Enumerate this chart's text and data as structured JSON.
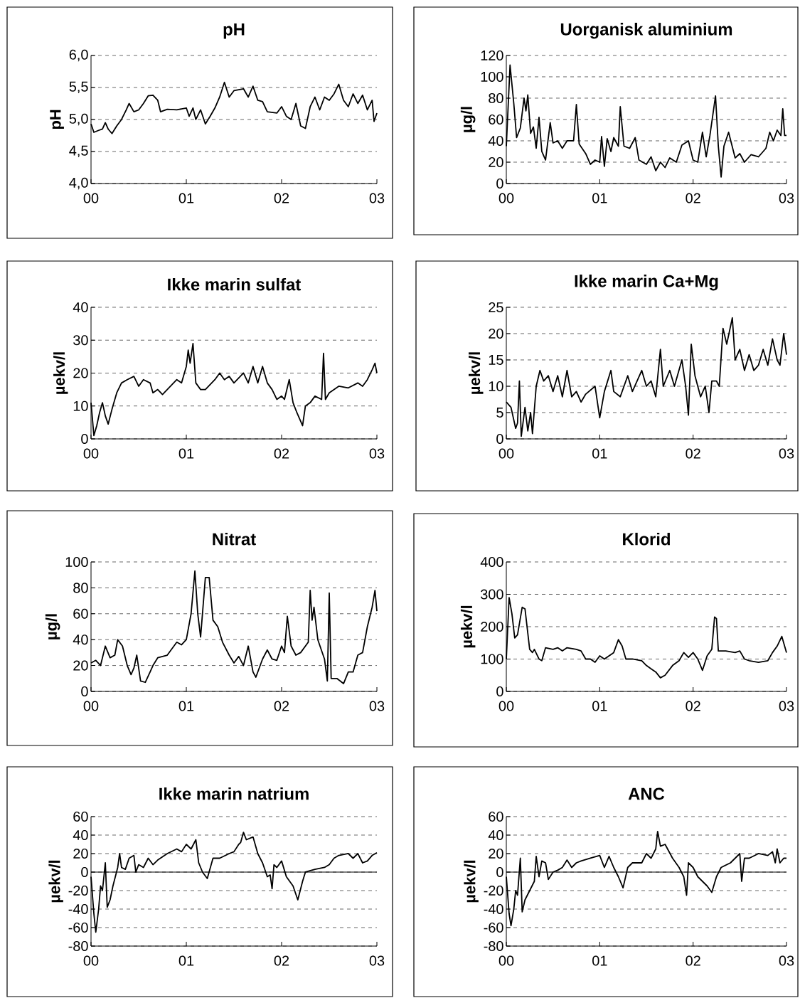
{
  "chart_data": [
    {
      "type": "line",
      "title": "pH",
      "ylabel": "pH",
      "color": "#000000",
      "line_style": "solid",
      "grid": "y",
      "xlim": [
        0,
        3
      ],
      "xticks": [
        {
          "value": 0,
          "label": "00"
        },
        {
          "value": 1,
          "label": "01"
        },
        {
          "value": 2,
          "label": "02"
        },
        {
          "value": 3,
          "label": "03"
        }
      ],
      "ylim": [
        4,
        6
      ],
      "yticks": [
        {
          "value": 4,
          "label": "4,0"
        },
        {
          "value": 4.5,
          "label": "4,5"
        },
        {
          "value": 5,
          "label": "5,0"
        },
        {
          "value": 5.5,
          "label": "5,5"
        },
        {
          "value": 6,
          "label": "6,0"
        }
      ],
      "x": [
        0,
        0.03,
        0.08,
        0.12,
        0.15,
        0.18,
        0.22,
        0.27,
        0.32,
        0.37,
        0.4,
        0.45,
        0.5,
        0.55,
        0.6,
        0.65,
        0.7,
        0.73,
        0.8,
        0.9,
        1.0,
        1.03,
        1.07,
        1.1,
        1.15,
        1.2,
        1.25,
        1.3,
        1.35,
        1.4,
        1.45,
        1.5,
        1.6,
        1.65,
        1.7,
        1.75,
        1.8,
        1.85,
        1.95,
        2.0,
        2.05,
        2.1,
        2.15,
        2.2,
        2.25,
        2.3,
        2.35,
        2.4,
        2.45,
        2.5,
        2.55,
        2.6,
        2.65,
        2.7,
        2.75,
        2.8,
        2.85,
        2.9,
        2.95,
        2.97,
        3.0
      ],
      "values": [
        4.93,
        4.8,
        4.83,
        4.85,
        4.95,
        4.85,
        4.78,
        4.9,
        5.0,
        5.15,
        5.25,
        5.12,
        5.15,
        5.25,
        5.37,
        5.38,
        5.3,
        5.12,
        5.16,
        5.15,
        5.18,
        5.05,
        5.18,
        5.0,
        5.15,
        4.93,
        5.05,
        5.18,
        5.35,
        5.58,
        5.35,
        5.45,
        5.48,
        5.35,
        5.52,
        5.3,
        5.28,
        5.12,
        5.1,
        5.2,
        5.05,
        5.0,
        5.25,
        4.9,
        4.86,
        5.2,
        5.35,
        5.15,
        5.35,
        5.3,
        5.4,
        5.55,
        5.3,
        5.2,
        5.4,
        5.25,
        5.38,
        5.15,
        5.3,
        4.97,
        5.1
      ]
    },
    {
      "type": "line",
      "title": "Uorganisk aluminium",
      "ylabel": "µg/l",
      "color": "#000000",
      "line_style": "solid",
      "grid": "y",
      "xlim": [
        0,
        3
      ],
      "xticks": [
        {
          "value": 0,
          "label": "00"
        },
        {
          "value": 1,
          "label": "01"
        },
        {
          "value": 2,
          "label": "02"
        },
        {
          "value": 3,
          "label": "03"
        }
      ],
      "ylim": [
        0,
        120
      ],
      "yticks": [
        0,
        20,
        40,
        60,
        80,
        100,
        120
      ],
      "x": [
        0,
        0.04,
        0.08,
        0.11,
        0.15,
        0.19,
        0.21,
        0.23,
        0.26,
        0.29,
        0.32,
        0.35,
        0.38,
        0.42,
        0.47,
        0.5,
        0.55,
        0.6,
        0.65,
        0.72,
        0.75,
        0.78,
        0.85,
        0.9,
        0.95,
        1.0,
        1.02,
        1.05,
        1.08,
        1.12,
        1.15,
        1.2,
        1.22,
        1.26,
        1.32,
        1.38,
        1.42,
        1.5,
        1.55,
        1.6,
        1.65,
        1.7,
        1.75,
        1.82,
        1.88,
        1.95,
        2.0,
        2.05,
        2.1,
        2.14,
        2.18,
        2.24,
        2.27,
        2.3,
        2.33,
        2.38,
        2.45,
        2.5,
        2.55,
        2.62,
        2.7,
        2.78,
        2.82,
        2.86,
        2.9,
        2.94,
        2.96,
        2.98,
        3.0
      ],
      "values": [
        35,
        111,
        75,
        43,
        52,
        80,
        68,
        83,
        47,
        53,
        33,
        62,
        30,
        22,
        57,
        38,
        40,
        33,
        40,
        40,
        74,
        37,
        28,
        18,
        22,
        20,
        44,
        16,
        42,
        30,
        43,
        35,
        72,
        35,
        33,
        43,
        22,
        18,
        25,
        12,
        20,
        15,
        24,
        20,
        36,
        40,
        22,
        20,
        48,
        25,
        45,
        82,
        35,
        6,
        35,
        48,
        24,
        28,
        20,
        27,
        25,
        33,
        48,
        40,
        50,
        45,
        70,
        45,
        45
      ]
    },
    {
      "type": "line",
      "title": "Ikke marin sulfat",
      "ylabel": "µekv/l",
      "color": "#000000",
      "line_style": "solid",
      "grid": "y",
      "xlim": [
        0,
        3
      ],
      "xticks": [
        {
          "value": 0,
          "label": "00"
        },
        {
          "value": 1,
          "label": "01"
        },
        {
          "value": 2,
          "label": "02"
        },
        {
          "value": 3,
          "label": "03"
        }
      ],
      "ylim": [
        0,
        40
      ],
      "yticks": [
        0,
        10,
        20,
        30,
        40
      ],
      "x": [
        0,
        0.03,
        0.06,
        0.09,
        0.12,
        0.15,
        0.18,
        0.22,
        0.27,
        0.32,
        0.38,
        0.45,
        0.5,
        0.55,
        0.62,
        0.65,
        0.7,
        0.75,
        0.8,
        0.9,
        0.95,
        1.0,
        1.02,
        1.04,
        1.07,
        1.1,
        1.15,
        1.2,
        1.3,
        1.35,
        1.4,
        1.45,
        1.5,
        1.6,
        1.65,
        1.7,
        1.75,
        1.8,
        1.85,
        1.9,
        1.95,
        2.0,
        2.03,
        2.08,
        2.12,
        2.16,
        2.22,
        2.25,
        2.3,
        2.35,
        2.42,
        2.44,
        2.46,
        2.5,
        2.6,
        2.7,
        2.8,
        2.85,
        2.9,
        2.95,
        2.98,
        3.0
      ],
      "values": [
        11,
        1,
        4,
        8,
        11,
        7,
        4.5,
        9,
        14,
        17,
        18,
        19,
        16,
        18,
        17,
        14,
        15,
        13.5,
        15,
        18,
        17,
        22,
        27,
        23,
        29,
        17,
        15,
        15,
        18,
        20,
        18,
        19,
        17,
        20,
        17,
        22,
        17,
        22,
        17,
        15,
        12,
        13,
        12,
        18,
        11,
        8,
        4,
        10,
        11,
        13,
        12,
        26,
        12,
        14,
        16,
        15.5,
        17,
        16,
        18,
        21,
        23,
        20
      ]
    },
    {
      "type": "line",
      "title": "Ikke marin Ca+Mg",
      "ylabel": "µekv/l",
      "color": "#000000",
      "line_style": "solid",
      "grid": "y",
      "xlim": [
        0,
        3
      ],
      "xticks": [
        {
          "value": 0,
          "label": "00"
        },
        {
          "value": 1,
          "label": "01"
        },
        {
          "value": 2,
          "label": "02"
        },
        {
          "value": 3,
          "label": "03"
        }
      ],
      "ylim": [
        0,
        25
      ],
      "yticks": [
        0,
        5,
        10,
        15,
        20,
        25
      ],
      "x": [
        0,
        0.05,
        0.1,
        0.12,
        0.14,
        0.16,
        0.2,
        0.23,
        0.26,
        0.28,
        0.32,
        0.36,
        0.4,
        0.45,
        0.5,
        0.55,
        0.6,
        0.65,
        0.7,
        0.75,
        0.8,
        0.85,
        0.95,
        1.0,
        1.05,
        1.12,
        1.15,
        1.22,
        1.3,
        1.35,
        1.45,
        1.5,
        1.55,
        1.6,
        1.65,
        1.68,
        1.75,
        1.8,
        1.88,
        1.92,
        1.95,
        1.98,
        2.02,
        2.08,
        2.13,
        2.17,
        2.2,
        2.25,
        2.28,
        2.32,
        2.36,
        2.42,
        2.45,
        2.5,
        2.55,
        2.6,
        2.65,
        2.7,
        2.75,
        2.8,
        2.85,
        2.9,
        2.93,
        2.97,
        3.0
      ],
      "values": [
        7,
        6,
        2,
        3,
        11,
        0.5,
        6,
        1.5,
        5,
        1,
        10,
        13,
        11,
        12,
        9,
        12,
        8,
        13,
        8,
        9,
        7,
        8.5,
        10,
        4,
        9,
        13,
        9,
        8,
        12,
        9,
        13,
        10,
        11,
        8,
        17,
        10,
        13,
        10,
        15,
        10,
        4.5,
        18,
        12,
        8,
        10,
        5,
        11,
        11,
        10,
        21,
        18,
        23,
        15,
        17,
        13,
        16,
        13,
        14,
        17,
        14,
        19,
        15,
        14,
        20,
        16
      ]
    },
    {
      "type": "line",
      "title": "Nitrat",
      "ylabel": "µg/l",
      "color": "#000000",
      "line_style": "solid",
      "grid": "y",
      "xlim": [
        0,
        3
      ],
      "xticks": [
        {
          "value": 0,
          "label": "00"
        },
        {
          "value": 1,
          "label": "01"
        },
        {
          "value": 2,
          "label": "02"
        },
        {
          "value": 3,
          "label": "03"
        }
      ],
      "ylim": [
        0,
        100
      ],
      "yticks": [
        0,
        20,
        40,
        60,
        80,
        100
      ],
      "x": [
        0,
        0.05,
        0.1,
        0.15,
        0.2,
        0.25,
        0.28,
        0.33,
        0.38,
        0.42,
        0.45,
        0.48,
        0.52,
        0.57,
        0.62,
        0.65,
        0.7,
        0.8,
        0.9,
        0.95,
        1.0,
        1.05,
        1.09,
        1.12,
        1.15,
        1.2,
        1.24,
        1.28,
        1.33,
        1.38,
        1.45,
        1.5,
        1.55,
        1.6,
        1.65,
        1.7,
        1.73,
        1.8,
        1.85,
        1.9,
        1.95,
        2.0,
        2.03,
        2.06,
        2.1,
        2.15,
        2.2,
        2.28,
        2.3,
        2.32,
        2.34,
        2.38,
        2.45,
        2.48,
        2.5,
        2.52,
        2.58,
        2.65,
        2.7,
        2.75,
        2.8,
        2.85,
        2.9,
        2.95,
        2.98,
        3.0
      ],
      "values": [
        22,
        24,
        20,
        35,
        26,
        28,
        40,
        35,
        20,
        13,
        18,
        28,
        8,
        7,
        15,
        20,
        26,
        28,
        38,
        36,
        40,
        60,
        93,
        60,
        42,
        88,
        88,
        55,
        50,
        38,
        28,
        22,
        27,
        20,
        35,
        15,
        11,
        25,
        32,
        25,
        24,
        35,
        30,
        58,
        35,
        28,
        30,
        38,
        78,
        55,
        65,
        40,
        25,
        8,
        76,
        10,
        10,
        6,
        15,
        15,
        28,
        30,
        50,
        65,
        78,
        62
      ]
    },
    {
      "type": "line",
      "title": "Klorid",
      "ylabel": "µekv/l",
      "color": "#000000",
      "line_style": "solid",
      "grid": "y",
      "xlim": [
        0,
        3
      ],
      "xticks": [
        {
          "value": 0,
          "label": "00"
        },
        {
          "value": 1,
          "label": "01"
        },
        {
          "value": 2,
          "label": "02"
        },
        {
          "value": 3,
          "label": "03"
        }
      ],
      "ylim": [
        0,
        400
      ],
      "yticks": [
        0,
        100,
        200,
        300,
        400
      ],
      "x": [
        0,
        0.03,
        0.06,
        0.09,
        0.12,
        0.17,
        0.2,
        0.25,
        0.28,
        0.3,
        0.35,
        0.38,
        0.42,
        0.5,
        0.55,
        0.6,
        0.65,
        0.75,
        0.8,
        0.85,
        0.9,
        0.95,
        1.0,
        1.05,
        1.1,
        1.15,
        1.2,
        1.24,
        1.28,
        1.35,
        1.45,
        1.5,
        1.55,
        1.6,
        1.65,
        1.7,
        1.78,
        1.85,
        1.9,
        1.95,
        2.0,
        2.05,
        2.1,
        2.15,
        2.2,
        2.23,
        2.25,
        2.27,
        2.35,
        2.45,
        2.5,
        2.55,
        2.6,
        2.7,
        2.8,
        2.85,
        2.9,
        2.95,
        3.0
      ],
      "values": [
        100,
        290,
        240,
        165,
        175,
        260,
        255,
        130,
        120,
        130,
        100,
        95,
        135,
        130,
        135,
        125,
        135,
        130,
        125,
        100,
        100,
        90,
        110,
        100,
        110,
        120,
        160,
        140,
        100,
        100,
        95,
        80,
        70,
        60,
        42,
        50,
        80,
        95,
        120,
        105,
        120,
        100,
        65,
        110,
        130,
        230,
        225,
        125,
        125,
        120,
        125,
        100,
        95,
        90,
        95,
        120,
        140,
        170,
        120
      ]
    },
    {
      "type": "line",
      "title": "Ikke marin natrium",
      "ylabel": "µekv/l",
      "color": "#000000",
      "line_style": "solid",
      "grid": "y",
      "xlim": [
        0,
        3
      ],
      "xticks": [
        {
          "value": 0,
          "label": "00"
        },
        {
          "value": 1,
          "label": "01"
        },
        {
          "value": 2,
          "label": "02"
        },
        {
          "value": 3,
          "label": "03"
        }
      ],
      "ylim": [
        -80,
        60
      ],
      "yticks": [
        -80,
        -60,
        -40,
        -20,
        0,
        20,
        40,
        60
      ],
      "ref_lines": [
        {
          "axis": "y",
          "value": 0,
          "color": "#000000",
          "line_style": "solid"
        }
      ],
      "x": [
        0,
        0.03,
        0.05,
        0.08,
        0.1,
        0.12,
        0.15,
        0.17,
        0.2,
        0.23,
        0.28,
        0.3,
        0.32,
        0.36,
        0.4,
        0.45,
        0.47,
        0.5,
        0.55,
        0.6,
        0.65,
        0.7,
        0.8,
        0.9,
        0.95,
        1.0,
        1.05,
        1.1,
        1.13,
        1.17,
        1.22,
        1.28,
        1.35,
        1.45,
        1.5,
        1.55,
        1.57,
        1.6,
        1.63,
        1.7,
        1.75,
        1.8,
        1.85,
        1.88,
        1.9,
        1.92,
        1.95,
        2.0,
        2.05,
        2.12,
        2.17,
        2.22,
        2.25,
        2.35,
        2.45,
        2.5,
        2.55,
        2.6,
        2.7,
        2.75,
        2.8,
        2.85,
        2.9,
        2.95,
        3.0
      ],
      "values": [
        -5,
        -45,
        -65,
        -40,
        -15,
        -20,
        10,
        -38,
        -30,
        -15,
        5,
        20,
        5,
        3,
        15,
        18,
        0,
        8,
        5,
        15,
        8,
        13,
        20,
        25,
        22,
        30,
        25,
        35,
        10,
        0,
        -7,
        15,
        15,
        20,
        22,
        30,
        32,
        43,
        35,
        38,
        20,
        10,
        -5,
        -3,
        -18,
        8,
        5,
        12,
        -5,
        -15,
        -30,
        -10,
        0,
        3,
        5,
        8,
        15,
        18,
        20,
        15,
        20,
        10,
        12,
        18,
        21
      ]
    },
    {
      "type": "line",
      "title": "ANC",
      "ylabel": "µekv/l",
      "color": "#000000",
      "line_style": "solid",
      "grid": "y",
      "xlim": [
        0,
        3
      ],
      "xticks": [
        {
          "value": 0,
          "label": "00"
        },
        {
          "value": 1,
          "label": "01"
        },
        {
          "value": 2,
          "label": "02"
        },
        {
          "value": 3,
          "label": "03"
        }
      ],
      "ylim": [
        -80,
        60
      ],
      "yticks": [
        -80,
        -60,
        -40,
        -20,
        0,
        20,
        40,
        60
      ],
      "ref_lines": [
        {
          "axis": "y",
          "value": 0,
          "color": "#000000",
          "line_style": "solid"
        }
      ],
      "x": [
        0,
        0.03,
        0.05,
        0.08,
        0.1,
        0.12,
        0.15,
        0.17,
        0.2,
        0.25,
        0.3,
        0.32,
        0.35,
        0.38,
        0.42,
        0.45,
        0.5,
        0.55,
        0.6,
        0.65,
        0.7,
        0.75,
        0.8,
        0.9,
        1.0,
        1.05,
        1.1,
        1.15,
        1.2,
        1.25,
        1.3,
        1.35,
        1.45,
        1.5,
        1.55,
        1.6,
        1.62,
        1.65,
        1.7,
        1.78,
        1.85,
        1.9,
        1.93,
        1.95,
        2.0,
        2.05,
        2.1,
        2.15,
        2.2,
        2.25,
        2.3,
        2.4,
        2.45,
        2.5,
        2.52,
        2.55,
        2.6,
        2.7,
        2.8,
        2.85,
        2.88,
        2.9,
        2.93,
        2.97,
        3.0
      ],
      "values": [
        -5,
        -45,
        -58,
        -40,
        -20,
        -25,
        15,
        -43,
        -30,
        -20,
        -10,
        17,
        -5,
        12,
        10,
        -8,
        0,
        2,
        5,
        13,
        5,
        10,
        12,
        15,
        18,
        5,
        17,
        5,
        -5,
        -17,
        5,
        10,
        10,
        20,
        15,
        25,
        44,
        28,
        30,
        15,
        5,
        -5,
        -25,
        10,
        5,
        -5,
        -10,
        -15,
        -22,
        -5,
        5,
        10,
        15,
        20,
        -10,
        15,
        15,
        20,
        18,
        22,
        10,
        25,
        10,
        15,
        15
      ]
    }
  ]
}
